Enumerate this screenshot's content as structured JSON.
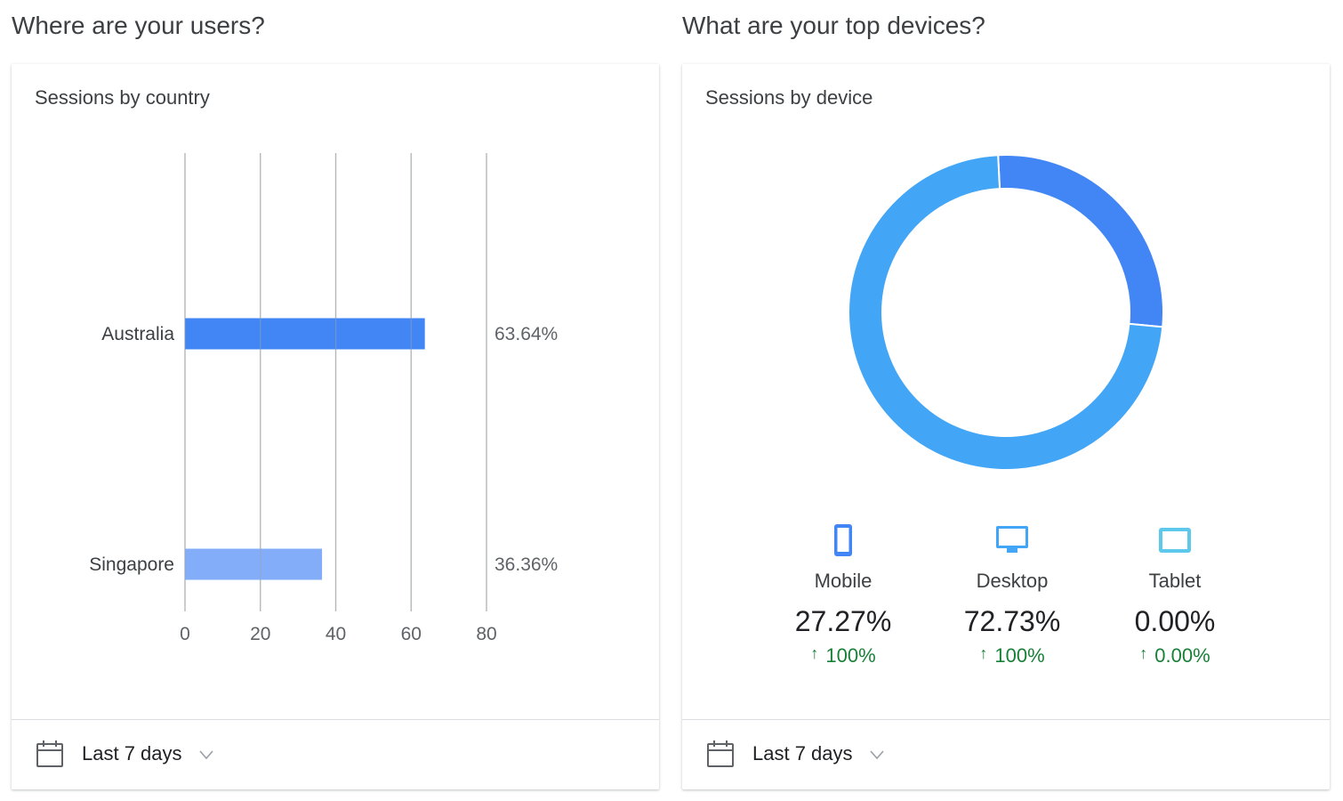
{
  "left": {
    "section_title": "Where are your users?",
    "card_title": "Sessions by country",
    "footer_label": "Last 7 days"
  },
  "right": {
    "section_title": "What are your top devices?",
    "card_title": "Sessions by device",
    "footer_label": "Last 7 days",
    "devices": [
      {
        "name": "Mobile",
        "pct": "27.27%",
        "change": "100%",
        "icon": "smartphone-icon",
        "color": "#4285f4"
      },
      {
        "name": "Desktop",
        "pct": "72.73%",
        "change": "100%",
        "icon": "desktop-icon",
        "color": "#42a5f5"
      },
      {
        "name": "Tablet",
        "pct": "0.00%",
        "change": "0.00%",
        "icon": "tablet-icon",
        "color": "#5bc8ec"
      }
    ],
    "change_arrow": "↑",
    "change_color": "#188038"
  },
  "chart_data": [
    {
      "type": "bar",
      "orientation": "horizontal",
      "categories": [
        "Australia",
        "Singapore"
      ],
      "values": [
        63.64,
        36.36
      ],
      "value_labels": [
        "63.64%",
        "36.36%"
      ],
      "colors": [
        "#4285f4",
        "#83acf9"
      ],
      "xticks": [
        "0",
        "20",
        "40",
        "60",
        "80"
      ],
      "xlim": [
        0,
        80
      ],
      "grid": true
    },
    {
      "type": "pie",
      "style": "donut",
      "labels": [
        "Mobile",
        "Desktop",
        "Tablet"
      ],
      "values": [
        27.27,
        72.73,
        0.0
      ],
      "colors": [
        "#4285f4",
        "#42a5f5",
        "#5bc8ec"
      ]
    }
  ]
}
